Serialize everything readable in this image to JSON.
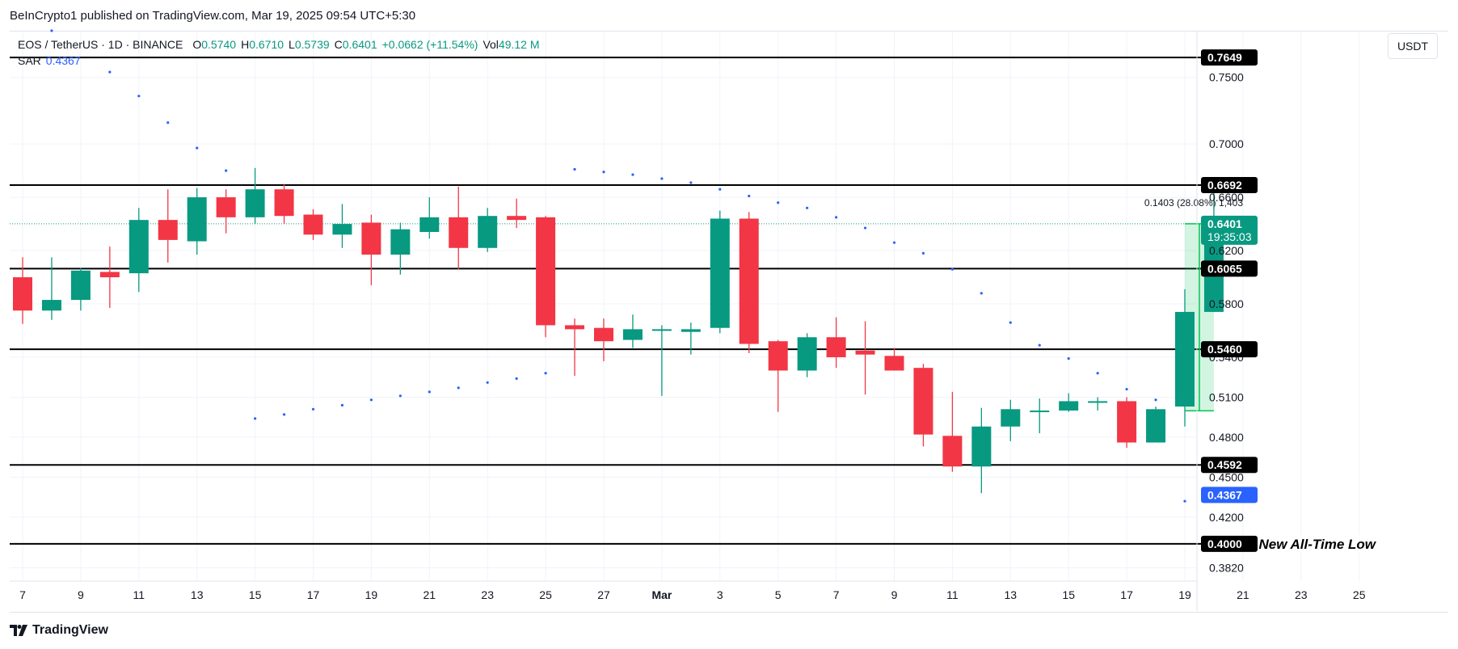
{
  "header": {
    "publisher_line": "BeInCrypto1 published on TradingView.com, Mar 19, 2025 09:54 UTC+5:30"
  },
  "legend": {
    "symbol": "EOS / TetherUS · 1D · BINANCE",
    "o_label": "O",
    "o": "0.5740",
    "h_label": "H",
    "h": "0.6710",
    "l_label": "L",
    "l": "0.5739",
    "c_label": "C",
    "c": "0.6401",
    "change": "+0.0662 (+11.54%)",
    "vol_label": "Vol",
    "vol": "49.12 M",
    "sar_label": "SAR",
    "sar": "0.4367"
  },
  "currency": "USDT",
  "brand": {
    "name": "TradingView"
  },
  "colors": {
    "up": "#089981",
    "down": "#f23645",
    "sar": "#2962ff",
    "level": "#000000",
    "grid": "#f0f3fa",
    "measure": "#00c853"
  },
  "chart_data": {
    "type": "candlestick",
    "ylim": [
      0.372,
      0.785
    ],
    "x_ticks": [
      {
        "label": "7",
        "i": 0
      },
      {
        "label": "9",
        "i": 2
      },
      {
        "label": "11",
        "i": 4
      },
      {
        "label": "13",
        "i": 6
      },
      {
        "label": "15",
        "i": 8
      },
      {
        "label": "17",
        "i": 10
      },
      {
        "label": "19",
        "i": 12
      },
      {
        "label": "21",
        "i": 14
      },
      {
        "label": "23",
        "i": 16
      },
      {
        "label": "25",
        "i": 18
      },
      {
        "label": "27",
        "i": 20
      },
      {
        "label": "Mar",
        "i": 22
      },
      {
        "label": "3",
        "i": 24
      },
      {
        "label": "5",
        "i": 26
      },
      {
        "label": "7",
        "i": 28
      },
      {
        "label": "9",
        "i": 30
      },
      {
        "label": "11",
        "i": 32
      },
      {
        "label": "13",
        "i": 34
      },
      {
        "label": "15",
        "i": 36
      },
      {
        "label": "17",
        "i": 38
      },
      {
        "label": "19",
        "i": 40
      },
      {
        "label": "21",
        "i": 42
      },
      {
        "label": "23",
        "i": 44
      },
      {
        "label": "25",
        "i": 46
      }
    ],
    "y_ticks": [
      "0.3820",
      "0.4200",
      "0.4500",
      "0.4800",
      "0.5100",
      "0.5400",
      "0.5800",
      "0.6200",
      "0.6600",
      "0.7000",
      "0.7500"
    ],
    "candles": [
      {
        "o": 0.6,
        "h": 0.615,
        "l": 0.565,
        "c": 0.575
      },
      {
        "o": 0.575,
        "h": 0.615,
        "l": 0.568,
        "c": 0.583
      },
      {
        "o": 0.583,
        "h": 0.607,
        "l": 0.575,
        "c": 0.605
      },
      {
        "o": 0.604,
        "h": 0.623,
        "l": 0.577,
        "c": 0.6
      },
      {
        "o": 0.603,
        "h": 0.652,
        "l": 0.589,
        "c": 0.643
      },
      {
        "o": 0.643,
        "h": 0.666,
        "l": 0.611,
        "c": 0.628
      },
      {
        "o": 0.627,
        "h": 0.667,
        "l": 0.617,
        "c": 0.66
      },
      {
        "o": 0.66,
        "h": 0.666,
        "l": 0.633,
        "c": 0.645
      },
      {
        "o": 0.645,
        "h": 0.682,
        "l": 0.64,
        "c": 0.666
      },
      {
        "o": 0.666,
        "h": 0.67,
        "l": 0.64,
        "c": 0.646
      },
      {
        "o": 0.647,
        "h": 0.651,
        "l": 0.628,
        "c": 0.632
      },
      {
        "o": 0.632,
        "h": 0.655,
        "l": 0.622,
        "c": 0.64
      },
      {
        "o": 0.641,
        "h": 0.647,
        "l": 0.594,
        "c": 0.617
      },
      {
        "o": 0.617,
        "h": 0.641,
        "l": 0.602,
        "c": 0.636
      },
      {
        "o": 0.634,
        "h": 0.66,
        "l": 0.629,
        "c": 0.645
      },
      {
        "o": 0.645,
        "h": 0.668,
        "l": 0.606,
        "c": 0.622
      },
      {
        "o": 0.622,
        "h": 0.652,
        "l": 0.619,
        "c": 0.646
      },
      {
        "o": 0.646,
        "h": 0.659,
        "l": 0.637,
        "c": 0.643
      },
      {
        "o": 0.645,
        "h": 0.646,
        "l": 0.555,
        "c": 0.564
      },
      {
        "o": 0.564,
        "h": 0.569,
        "l": 0.526,
        "c": 0.561
      },
      {
        "o": 0.562,
        "h": 0.569,
        "l": 0.537,
        "c": 0.552
      },
      {
        "o": 0.553,
        "h": 0.572,
        "l": 0.547,
        "c": 0.561
      },
      {
        "o": 0.561,
        "h": 0.564,
        "l": 0.511,
        "c": 0.561
      },
      {
        "o": 0.559,
        "h": 0.566,
        "l": 0.542,
        "c": 0.561
      },
      {
        "o": 0.562,
        "h": 0.65,
        "l": 0.558,
        "c": 0.644
      },
      {
        "o": 0.644,
        "h": 0.649,
        "l": 0.543,
        "c": 0.55
      },
      {
        "o": 0.552,
        "h": 0.553,
        "l": 0.499,
        "c": 0.53
      },
      {
        "o": 0.53,
        "h": 0.558,
        "l": 0.525,
        "c": 0.555
      },
      {
        "o": 0.555,
        "h": 0.57,
        "l": 0.532,
        "c": 0.54
      },
      {
        "o": 0.545,
        "h": 0.567,
        "l": 0.512,
        "c": 0.542
      },
      {
        "o": 0.541,
        "h": 0.547,
        "l": 0.532,
        "c": 0.53
      },
      {
        "o": 0.532,
        "h": 0.535,
        "l": 0.473,
        "c": 0.482
      },
      {
        "o": 0.481,
        "h": 0.514,
        "l": 0.454,
        "c": 0.458
      },
      {
        "o": 0.458,
        "h": 0.502,
        "l": 0.438,
        "c": 0.488
      },
      {
        "o": 0.488,
        "h": 0.508,
        "l": 0.477,
        "c": 0.501
      },
      {
        "o": 0.5,
        "h": 0.509,
        "l": 0.483,
        "c": 0.5
      },
      {
        "o": 0.5,
        "h": 0.513,
        "l": 0.499,
        "c": 0.507
      },
      {
        "o": 0.506,
        "h": 0.51,
        "l": 0.5,
        "c": 0.507
      },
      {
        "o": 0.507,
        "h": 0.51,
        "l": 0.472,
        "c": 0.476
      },
      {
        "o": 0.476,
        "h": 0.503,
        "l": 0.476,
        "c": 0.501
      },
      {
        "o": 0.503,
        "h": 0.591,
        "l": 0.488,
        "c": 0.574
      },
      {
        "o": 0.574,
        "h": 0.671,
        "l": 0.5739,
        "c": 0.6401
      }
    ],
    "sar": [
      {
        "i": 1,
        "v": 0.785
      },
      {
        "i": 3,
        "v": 0.754
      },
      {
        "i": 4,
        "v": 0.736
      },
      {
        "i": 5,
        "v": 0.716
      },
      {
        "i": 6,
        "v": 0.697
      },
      {
        "i": 7,
        "v": 0.68
      },
      {
        "i": 8,
        "v": 0.494
      },
      {
        "i": 9,
        "v": 0.497
      },
      {
        "i": 10,
        "v": 0.501
      },
      {
        "i": 11,
        "v": 0.504
      },
      {
        "i": 12,
        "v": 0.508
      },
      {
        "i": 13,
        "v": 0.511
      },
      {
        "i": 14,
        "v": 0.514
      },
      {
        "i": 15,
        "v": 0.517
      },
      {
        "i": 16,
        "v": 0.521
      },
      {
        "i": 17,
        "v": 0.524
      },
      {
        "i": 18,
        "v": 0.528
      },
      {
        "i": 19,
        "v": 0.681
      },
      {
        "i": 20,
        "v": 0.679
      },
      {
        "i": 21,
        "v": 0.677
      },
      {
        "i": 22,
        "v": 0.674
      },
      {
        "i": 23,
        "v": 0.671
      },
      {
        "i": 24,
        "v": 0.666
      },
      {
        "i": 25,
        "v": 0.661
      },
      {
        "i": 26,
        "v": 0.656
      },
      {
        "i": 27,
        "v": 0.652
      },
      {
        "i": 28,
        "v": 0.645
      },
      {
        "i": 29,
        "v": 0.637
      },
      {
        "i": 30,
        "v": 0.626
      },
      {
        "i": 31,
        "v": 0.618
      },
      {
        "i": 32,
        "v": 0.606
      },
      {
        "i": 33,
        "v": 0.588
      },
      {
        "i": 34,
        "v": 0.566
      },
      {
        "i": 35,
        "v": 0.549
      },
      {
        "i": 36,
        "v": 0.539
      },
      {
        "i": 37,
        "v": 0.528
      },
      {
        "i": 38,
        "v": 0.516
      },
      {
        "i": 39,
        "v": 0.508
      },
      {
        "i": 40,
        "v": 0.432
      },
      {
        "i": 41,
        "v": 0.4367
      }
    ],
    "levels": [
      {
        "value": 0.7649,
        "label": "0.7649"
      },
      {
        "value": 0.6692,
        "label": "0.6692"
      },
      {
        "value": 0.6065,
        "label": "0.6065"
      },
      {
        "value": 0.546,
        "label": "0.5460"
      },
      {
        "value": 0.4592,
        "label": "0.4592"
      },
      {
        "value": 0.4,
        "label": "0.4000",
        "annotation": "New All-Time Low"
      }
    ],
    "last_price": {
      "value": 0.6401,
      "label": "0.6401",
      "countdown": "19:35:03"
    },
    "sar_label": {
      "value": 0.4367,
      "label": "0.4367"
    },
    "measure": {
      "from_i": 40,
      "to_i": 41,
      "low": 0.4998,
      "high": 0.6401,
      "label": "0.1403 (28.08%) 1,403"
    }
  }
}
